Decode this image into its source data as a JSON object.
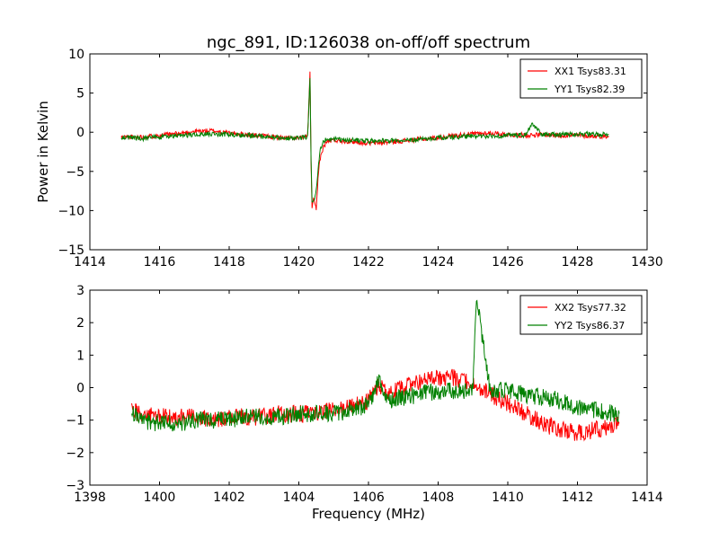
{
  "figure": {
    "title": "ngc_891, ID:126038 on-off/off spectrum",
    "ylabel": "Power in Kelvin",
    "xlabel": "Frequency (MHz)"
  },
  "chart_data": [
    {
      "type": "line",
      "xlim": [
        1414,
        1430
      ],
      "ylim": [
        -15,
        10
      ],
      "xticks": [
        1414,
        1416,
        1418,
        1420,
        1422,
        1424,
        1426,
        1428,
        1430
      ],
      "yticks": [
        -15,
        -10,
        -5,
        0,
        5,
        10
      ],
      "grid": false,
      "legend": "top-right",
      "series": [
        {
          "name": "XX1 Tsys83.31",
          "color": "#ff0000",
          "x": [
            1414.9,
            1415.5,
            1416,
            1416.5,
            1417,
            1417.5,
            1418,
            1418.5,
            1419,
            1419.5,
            1420,
            1420.25,
            1420.32,
            1420.35,
            1420.38,
            1420.42,
            1420.5,
            1420.55,
            1420.6,
            1420.7,
            1420.8,
            1421,
            1421.5,
            1422,
            1422.5,
            1423,
            1423.5,
            1424,
            1424.5,
            1425,
            1425.5,
            1426,
            1426.5,
            1427,
            1427.5,
            1428,
            1428.5,
            1428.9
          ],
          "y": [
            -0.6,
            -0.6,
            -0.4,
            -0.2,
            0.1,
            0.2,
            -0.1,
            -0.3,
            -0.5,
            -0.7,
            -0.8,
            -0.5,
            7.5,
            -4.0,
            -9.5,
            -8.5,
            -10.0,
            -6.0,
            -3.5,
            -2.0,
            -1.2,
            -1.0,
            -1.2,
            -1.4,
            -1.3,
            -1.1,
            -0.9,
            -0.7,
            -0.4,
            -0.2,
            -0.1,
            -0.3,
            -0.4,
            -0.3,
            -0.4,
            -0.4,
            -0.5,
            -0.5
          ]
        },
        {
          "name": "YY1 Tsys82.39",
          "color": "#008000",
          "x": [
            1414.9,
            1415.5,
            1416,
            1416.5,
            1417,
            1417.5,
            1418,
            1418.5,
            1419,
            1419.5,
            1420,
            1420.25,
            1420.32,
            1420.35,
            1420.38,
            1420.42,
            1420.5,
            1420.55,
            1420.6,
            1420.7,
            1420.8,
            1421,
            1421.5,
            1422,
            1422.5,
            1423,
            1423.5,
            1424,
            1424.5,
            1425,
            1425.5,
            1426,
            1426.5,
            1426.7,
            1427,
            1427.5,
            1428,
            1428.5,
            1428.9
          ],
          "y": [
            -0.6,
            -0.8,
            -0.6,
            -0.5,
            -0.3,
            -0.2,
            -0.3,
            -0.4,
            -0.6,
            -0.7,
            -0.8,
            -0.6,
            6.8,
            -3.5,
            -8.7,
            -9.0,
            -7.5,
            -5.0,
            -2.5,
            -1.2,
            -0.9,
            -0.9,
            -1.0,
            -1.1,
            -1.1,
            -1.0,
            -0.9,
            -0.7,
            -0.6,
            -0.5,
            -0.5,
            -0.4,
            -0.4,
            1.0,
            -0.3,
            -0.3,
            -0.2,
            -0.3,
            -0.3
          ]
        }
      ]
    },
    {
      "type": "line",
      "xlim": [
        1398,
        1414
      ],
      "ylim": [
        -3,
        3
      ],
      "xticks": [
        1398,
        1400,
        1402,
        1404,
        1406,
        1408,
        1410,
        1412,
        1414
      ],
      "yticks": [
        -3,
        -2,
        -1,
        0,
        1,
        2,
        3
      ],
      "grid": false,
      "legend": "top-right",
      "series": [
        {
          "name": "XX2 Tsys77.32",
          "color": "#ff0000",
          "x": [
            1399.2,
            1399.5,
            1400,
            1400.5,
            1401,
            1401.5,
            1402,
            1402.5,
            1403,
            1403.5,
            1404,
            1404.5,
            1405,
            1405.5,
            1406,
            1406.3,
            1406.5,
            1407,
            1407.5,
            1408,
            1408.5,
            1409,
            1409.5,
            1410,
            1410.5,
            1411,
            1411.5,
            1412,
            1412.5,
            1413,
            1413.2
          ],
          "y": [
            -0.7,
            -0.8,
            -0.9,
            -0.9,
            -0.9,
            -1.0,
            -0.9,
            -0.9,
            -0.9,
            -0.8,
            -0.8,
            -0.8,
            -0.7,
            -0.6,
            -0.4,
            0.1,
            -0.2,
            0.0,
            0.2,
            0.3,
            0.3,
            0.1,
            -0.2,
            -0.5,
            -0.8,
            -1.1,
            -1.3,
            -1.4,
            -1.3,
            -1.2,
            -1.1
          ]
        },
        {
          "name": "YY2 Tsys86.37",
          "color": "#008000",
          "x": [
            1399.2,
            1399.5,
            1400,
            1400.5,
            1401,
            1401.5,
            1402,
            1402.5,
            1403,
            1403.5,
            1404,
            1404.5,
            1405,
            1405.5,
            1406,
            1406.3,
            1406.5,
            1407,
            1407.5,
            1408,
            1408.5,
            1409,
            1409.1,
            1409.5,
            1410,
            1410.5,
            1411,
            1411.5,
            1412,
            1412.5,
            1413,
            1413.2
          ],
          "y": [
            -0.8,
            -1.0,
            -1.1,
            -1.1,
            -1.0,
            -1.0,
            -1.0,
            -0.9,
            -0.9,
            -0.9,
            -0.8,
            -0.8,
            -0.8,
            -0.7,
            -0.5,
            0.2,
            -0.4,
            -0.3,
            -0.2,
            -0.1,
            -0.1,
            -0.1,
            2.8,
            -0.1,
            -0.1,
            -0.2,
            -0.3,
            -0.4,
            -0.6,
            -0.7,
            -0.8,
            -0.8
          ]
        }
      ]
    }
  ]
}
